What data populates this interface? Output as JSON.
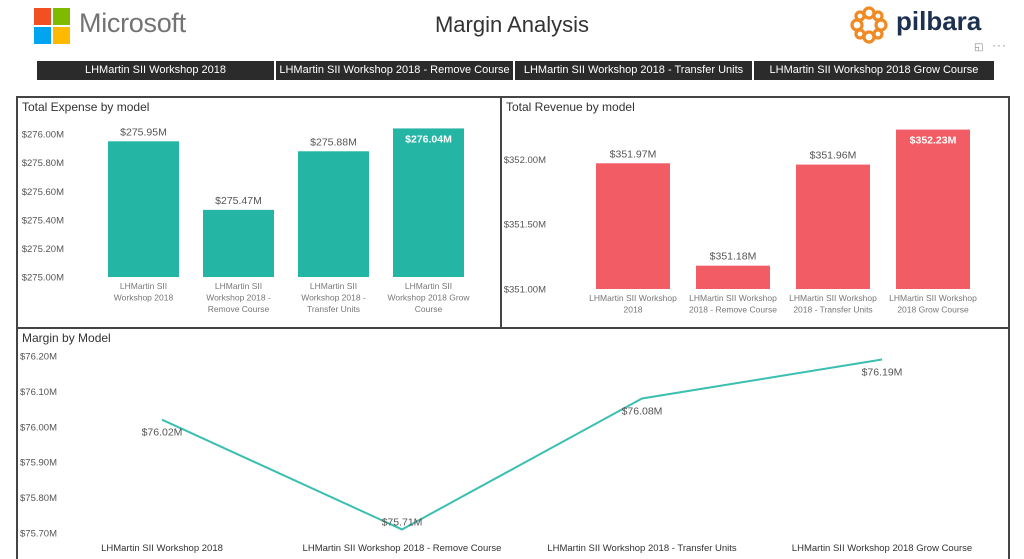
{
  "header": {
    "brand_left": "Microsoft",
    "title": "Margin Analysis",
    "brand_right": "pilbara",
    "brand_left_icon": "microsoft-logo",
    "brand_right_icon": "pilbara-logo",
    "focus_icon": "focus-mode-icon",
    "more_icon": "more-options-icon",
    "focus_glyph": "◱",
    "more_glyph": "···"
  },
  "tabs": [
    {
      "label": "LHMartin SII Workshop 2018"
    },
    {
      "label": "LHMartin SII Workshop 2018 - Remove Course"
    },
    {
      "label": "LHMartin SII Workshop 2018 - Transfer Units"
    },
    {
      "label": "LHMartin SII Workshop 2018 Grow Course"
    }
  ],
  "colors": {
    "expense": "#25b5a5",
    "revenue": "#f25c64",
    "margin": "#3bbfb0",
    "tab_bg": "#2b2b2b"
  },
  "chart_data": [
    {
      "type": "bar",
      "title": "Total Expense by model",
      "categories": [
        [
          "LHMartin SII",
          "Workshop 2018"
        ],
        [
          "LHMartin SII",
          "Workshop 2018 -",
          "Remove Course"
        ],
        [
          "LHMartin SII",
          "Workshop 2018 -",
          "Transfer Units"
        ],
        [
          "LHMartin SII",
          "Workshop 2018 Grow",
          "Course"
        ]
      ],
      "values": [
        275.95,
        275.47,
        275.88,
        276.04
      ],
      "labels": [
        "$275.95M",
        "$275.47M",
        "$275.88M",
        "$276.04M"
      ],
      "highlight_index": 3,
      "ylim": [
        275.0,
        276.05
      ],
      "yticks": [
        276.0,
        275.8,
        275.6,
        275.4,
        275.2,
        275.0
      ],
      "ytick_labels": [
        "$276.00M",
        "$275.80M",
        "$275.60M",
        "$275.40M",
        "$275.20M",
        "$275.00M"
      ]
    },
    {
      "type": "bar",
      "title": "Total Revenue by model",
      "categories": [
        [
          "LHMartin SII Workshop",
          "2018"
        ],
        [
          "LHMartin SII Workshop",
          "2018 - Remove Course"
        ],
        [
          "LHMartin SII Workshop",
          "2018 - Transfer Units"
        ],
        [
          "LHMartin SII Workshop",
          "2018 Grow Course"
        ]
      ],
      "values": [
        351.97,
        351.18,
        351.96,
        352.23
      ],
      "labels": [
        "$351.97M",
        "$351.18M",
        "$351.96M",
        "$352.23M"
      ],
      "highlight_index": 3,
      "ylim": [
        351.0,
        352.25
      ],
      "yticks": [
        352.0,
        351.5,
        351.0
      ],
      "ytick_labels": [
        "$352.00M",
        "$351.50M",
        "$351.00M"
      ]
    },
    {
      "type": "line",
      "title": "Margin by Model",
      "categories": [
        "LHMartin SII Workshop 2018",
        "LHMartin SII Workshop 2018 - Remove Course",
        "LHMartin SII Workshop 2018 - Transfer Units",
        "LHMartin SII Workshop 2018 Grow Course"
      ],
      "values": [
        76.02,
        75.71,
        76.08,
        76.19
      ],
      "labels": [
        "$76.02M",
        "$75.71M",
        "$76.08M",
        "$76.19M"
      ],
      "ylim": [
        75.7,
        76.2
      ],
      "yticks": [
        76.2,
        76.1,
        76.0,
        75.9,
        75.8,
        75.7
      ],
      "ytick_labels": [
        "$76.20M",
        "$76.10M",
        "$76.00M",
        "$75.90M",
        "$75.80M",
        "$75.70M"
      ]
    }
  ]
}
